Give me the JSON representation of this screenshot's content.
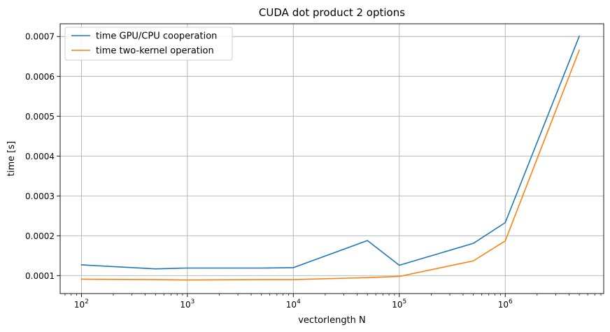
{
  "chart_data": {
    "type": "line",
    "title": "CUDA dot product 2 options",
    "xlabel": "vectorlength N",
    "ylabel": "time [s]",
    "xscale": "log",
    "xlim": [
      63,
      8500000
    ],
    "ylim": [
      5.5e-05,
      0.000732
    ],
    "grid": true,
    "legend_position": "top-left",
    "x_ticks": [
      {
        "value": 100,
        "base": "10",
        "exp": "2"
      },
      {
        "value": 1000,
        "base": "10",
        "exp": "3"
      },
      {
        "value": 10000,
        "base": "10",
        "exp": "4"
      },
      {
        "value": 100000,
        "base": "10",
        "exp": "5"
      },
      {
        "value": 1000000,
        "base": "10",
        "exp": "6"
      }
    ],
    "y_ticks": [
      {
        "value": 0.0001,
        "label": "0.0001"
      },
      {
        "value": 0.0002,
        "label": "0.0002"
      },
      {
        "value": 0.0003,
        "label": "0.0003"
      },
      {
        "value": 0.0004,
        "label": "0.0004"
      },
      {
        "value": 0.0005,
        "label": "0.0005"
      },
      {
        "value": 0.0006,
        "label": "0.0006"
      },
      {
        "value": 0.0007,
        "label": "0.0007"
      }
    ],
    "x": [
      100,
      500,
      1000,
      5000,
      10000,
      50000,
      100000,
      500000,
      1000000,
      5000000
    ],
    "series": [
      {
        "name": "time GPU/CPU cooperation",
        "color": "#1f77b4",
        "values": [
          0.000127,
          0.000117,
          0.000119,
          0.000119,
          0.00012,
          0.000188,
          0.000126,
          0.000181,
          0.000233,
          0.000701
        ]
      },
      {
        "name": "time two-kernel operation",
        "color": "#ff7f0e",
        "values": [
          9.1e-05,
          9e-05,
          8.9e-05,
          9e-05,
          9e-05,
          9.5e-05,
          9.8e-05,
          0.000137,
          0.000187,
          0.000666
        ]
      }
    ]
  }
}
